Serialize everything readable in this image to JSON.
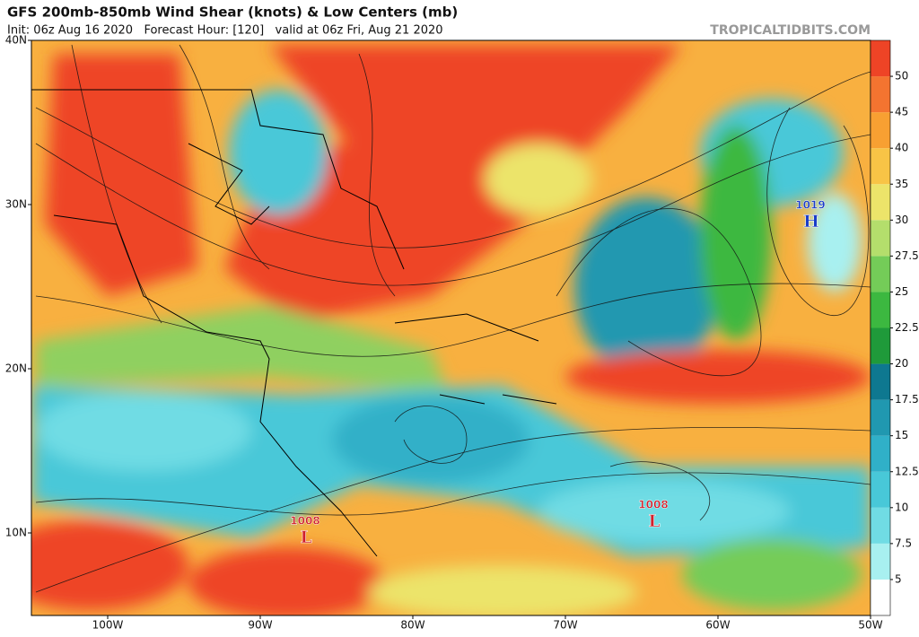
{
  "header": {
    "title": "GFS 200mb-850mb Wind Shear (knots) & Low Centers (mb)",
    "subtitle": "Init: 06z Aug 16 2020   Forecast Hour: [120]   valid at 06z Fri, Aug 21 2020",
    "source": "TROPICALTIDBITS.COM"
  },
  "map": {
    "lat_labels": [
      "40N",
      "30N",
      "20N",
      "10N"
    ],
    "lon_labels": [
      "100W",
      "90W",
      "80W",
      "70W",
      "60W",
      "50W"
    ],
    "centers": [
      {
        "pressure": "1019",
        "symbol": "H"
      },
      {
        "pressure": "1008",
        "symbol": "L"
      },
      {
        "pressure": "1008",
        "symbol": "L"
      }
    ]
  },
  "colorbar": {
    "ticks": [
      5,
      7.5,
      10,
      12.5,
      15,
      17.5,
      20,
      22.5,
      25,
      27.5,
      30,
      35,
      40,
      45,
      50
    ],
    "colors": [
      "#ffffff",
      "#a8f0f0",
      "#70dce4",
      "#48c8d8",
      "#30b0c8",
      "#2098b0",
      "#0e7890",
      "#1f9a3a",
      "#3cb840",
      "#74cc58",
      "#b4de6c",
      "#ece46a",
      "#f8c446",
      "#f8a032",
      "#f47430",
      "#ee4426"
    ]
  }
}
